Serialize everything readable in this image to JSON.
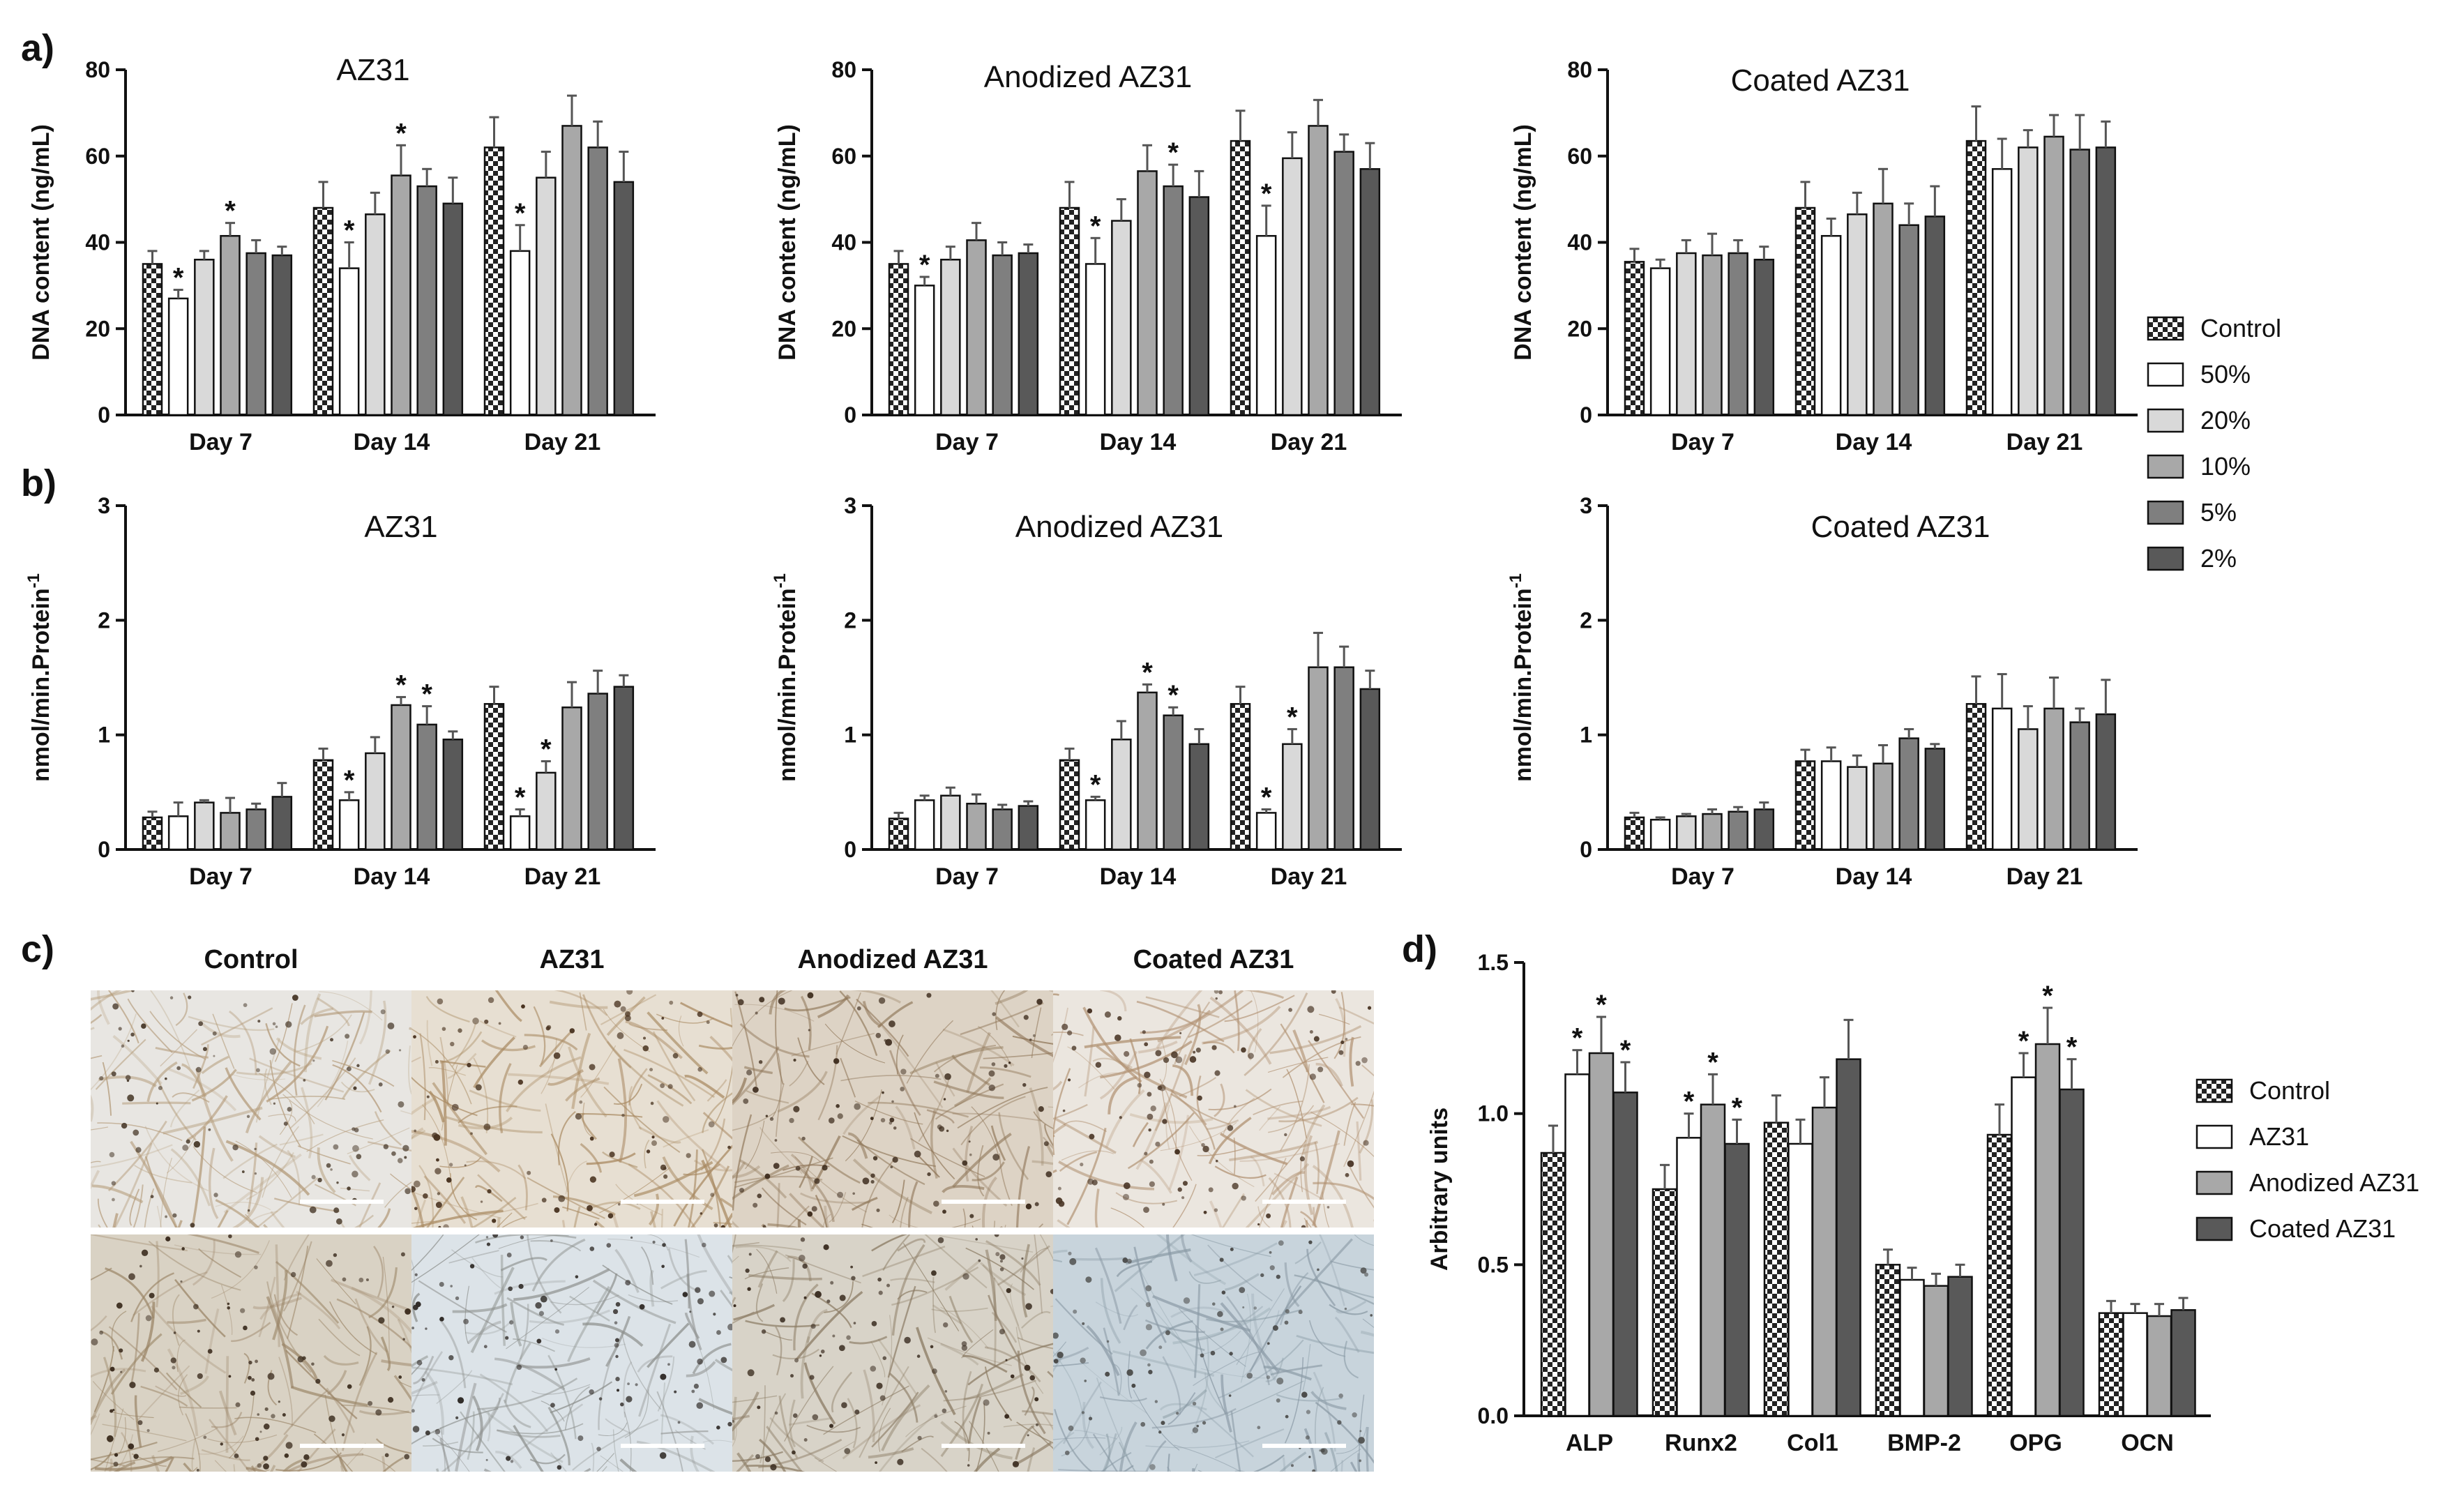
{
  "panels": {
    "a": "a)",
    "b": "b)",
    "c": "c)",
    "d": "d)"
  },
  "colors": {
    "checker_dark": "#222222",
    "checker_light": "#ffffff",
    "series_50": "#ffffff",
    "series_20": "#d9d9d9",
    "series_10": "#a8a8a8",
    "series_5": "#7f7f7f",
    "series_2": "#595959",
    "d_az31": "#ffffff",
    "d_anodized": "#a8a8a8",
    "d_coated": "#595959"
  },
  "legend_ab": [
    "Control",
    "50%",
    "20%",
    "10%",
    "5%",
    "2%"
  ],
  "legend_d": [
    "Control",
    "AZ31",
    "Anodized AZ31",
    "Coated AZ31"
  ],
  "micrographs": {
    "columns": [
      "Control",
      "AZ31",
      "Anodized AZ31",
      "Coated AZ31"
    ],
    "scale_bar_unit_shown": false
  },
  "chart_data": [
    {
      "id": "a1",
      "type": "bar",
      "title": "AZ31",
      "ylabel": "DNA content (ng/mL)",
      "xlabel": "",
      "ylim": [
        0,
        80
      ],
      "yticks": [
        0,
        20,
        40,
        60,
        80
      ],
      "categories": [
        "Day 7",
        "Day 14",
        "Day 21"
      ],
      "series": [
        {
          "name": "Control",
          "values": [
            35,
            48,
            62
          ],
          "errors": [
            3,
            6,
            7
          ],
          "sig": [
            false,
            false,
            false
          ]
        },
        {
          "name": "50%",
          "values": [
            27,
            34,
            38
          ],
          "errors": [
            2,
            6,
            6
          ],
          "sig": [
            true,
            true,
            true
          ]
        },
        {
          "name": "20%",
          "values": [
            36,
            46.5,
            55
          ],
          "errors": [
            2,
            5,
            6
          ],
          "sig": [
            false,
            false,
            false
          ]
        },
        {
          "name": "10%",
          "values": [
            41.5,
            55.5,
            67
          ],
          "errors": [
            3,
            7,
            7
          ],
          "sig": [
            true,
            true,
            false
          ]
        },
        {
          "name": "5%",
          "values": [
            37.5,
            53,
            62
          ],
          "errors": [
            3,
            4,
            6
          ],
          "sig": [
            false,
            false,
            false
          ]
        },
        {
          "name": "2%",
          "values": [
            37,
            49,
            54
          ],
          "errors": [
            2,
            6,
            7
          ],
          "sig": [
            false,
            false,
            false
          ]
        }
      ]
    },
    {
      "id": "a2",
      "type": "bar",
      "title": "Anodized AZ31",
      "ylabel": "DNA content (ng/mL)",
      "xlabel": "",
      "ylim": [
        0,
        80
      ],
      "yticks": [
        0,
        20,
        40,
        60,
        80
      ],
      "categories": [
        "Day 7",
        "Day 14",
        "Day 21"
      ],
      "series": [
        {
          "name": "Control",
          "values": [
            35,
            48,
            63.5
          ],
          "errors": [
            3,
            6,
            7
          ],
          "sig": [
            false,
            false,
            false
          ]
        },
        {
          "name": "50%",
          "values": [
            30,
            35,
            41.5
          ],
          "errors": [
            2,
            6,
            7
          ],
          "sig": [
            true,
            true,
            true
          ]
        },
        {
          "name": "20%",
          "values": [
            36,
            45,
            59.5
          ],
          "errors": [
            3,
            5,
            6
          ],
          "sig": [
            false,
            false,
            false
          ]
        },
        {
          "name": "10%",
          "values": [
            40.5,
            56.5,
            67
          ],
          "errors": [
            4,
            6,
            6
          ],
          "sig": [
            false,
            false,
            false
          ]
        },
        {
          "name": "5%",
          "values": [
            37,
            53,
            61
          ],
          "errors": [
            3,
            5,
            4
          ],
          "sig": [
            false,
            true,
            false
          ]
        },
        {
          "name": "2%",
          "values": [
            37.5,
            50.5,
            57
          ],
          "errors": [
            2,
            6,
            6
          ],
          "sig": [
            false,
            false,
            false
          ]
        }
      ]
    },
    {
      "id": "a3",
      "type": "bar",
      "title": "Coated AZ31",
      "ylabel": "DNA content (ng/mL)",
      "xlabel": "",
      "ylim": [
        0,
        80
      ],
      "yticks": [
        0,
        20,
        40,
        60,
        80
      ],
      "categories": [
        "Day 7",
        "Day 14",
        "Day 21"
      ],
      "series": [
        {
          "name": "Control",
          "values": [
            35.5,
            48,
            63.5
          ],
          "errors": [
            3,
            6,
            8
          ],
          "sig": [
            false,
            false,
            false
          ]
        },
        {
          "name": "50%",
          "values": [
            34,
            41.5,
            57
          ],
          "errors": [
            2,
            4,
            7
          ],
          "sig": [
            false,
            false,
            false
          ]
        },
        {
          "name": "20%",
          "values": [
            37.5,
            46.5,
            62
          ],
          "errors": [
            3,
            5,
            4
          ],
          "sig": [
            false,
            false,
            false
          ]
        },
        {
          "name": "10%",
          "values": [
            37,
            49,
            64.5
          ],
          "errors": [
            5,
            8,
            5
          ],
          "sig": [
            false,
            false,
            false
          ]
        },
        {
          "name": "5%",
          "values": [
            37.5,
            44,
            61.5
          ],
          "errors": [
            3,
            5,
            8
          ],
          "sig": [
            false,
            false,
            false
          ]
        },
        {
          "name": "2%",
          "values": [
            36,
            46,
            62
          ],
          "errors": [
            3,
            7,
            6
          ],
          "sig": [
            false,
            false,
            false
          ]
        }
      ]
    },
    {
      "id": "b1",
      "type": "bar",
      "title": "AZ31",
      "ylabel": "nmol/min.Protein-1",
      "xlabel": "",
      "ylim": [
        0,
        3
      ],
      "yticks": [
        0,
        1,
        2,
        3
      ],
      "categories": [
        "Day 7",
        "Day 14",
        "Day 21"
      ],
      "series": [
        {
          "name": "Control",
          "values": [
            0.28,
            0.78,
            1.27
          ],
          "errors": [
            0.05,
            0.1,
            0.15
          ],
          "sig": [
            false,
            false,
            false
          ]
        },
        {
          "name": "50%",
          "values": [
            0.29,
            0.43,
            0.29
          ],
          "errors": [
            0.12,
            0.07,
            0.06
          ],
          "sig": [
            false,
            true,
            true
          ]
        },
        {
          "name": "20%",
          "values": [
            0.41,
            0.84,
            0.67
          ],
          "errors": [
            0.02,
            0.14,
            0.1
          ],
          "sig": [
            false,
            false,
            true
          ]
        },
        {
          "name": "10%",
          "values": [
            0.32,
            1.26,
            1.24
          ],
          "errors": [
            0.13,
            0.07,
            0.22
          ],
          "sig": [
            false,
            true,
            false
          ]
        },
        {
          "name": "5%",
          "values": [
            0.35,
            1.09,
            1.36
          ],
          "errors": [
            0.05,
            0.16,
            0.2
          ],
          "sig": [
            false,
            true,
            false
          ]
        },
        {
          "name": "2%",
          "values": [
            0.46,
            0.96,
            1.42
          ],
          "errors": [
            0.12,
            0.07,
            0.1
          ],
          "sig": [
            false,
            false,
            false
          ]
        }
      ]
    },
    {
      "id": "b2",
      "type": "bar",
      "title": "Anodized AZ31",
      "ylabel": "nmol/min.Protein-1",
      "xlabel": "",
      "ylim": [
        0,
        3
      ],
      "yticks": [
        0,
        1,
        2,
        3
      ],
      "categories": [
        "Day 7",
        "Day 14",
        "Day 21"
      ],
      "series": [
        {
          "name": "Control",
          "values": [
            0.27,
            0.78,
            1.27
          ],
          "errors": [
            0.05,
            0.1,
            0.15
          ],
          "sig": [
            false,
            false,
            false
          ]
        },
        {
          "name": "50%",
          "values": [
            0.43,
            0.43,
            0.32
          ],
          "errors": [
            0.04,
            0.03,
            0.03
          ],
          "sig": [
            false,
            true,
            true
          ]
        },
        {
          "name": "20%",
          "values": [
            0.47,
            0.96,
            0.92
          ],
          "errors": [
            0.07,
            0.16,
            0.13
          ],
          "sig": [
            false,
            false,
            true
          ]
        },
        {
          "name": "10%",
          "values": [
            0.4,
            1.37,
            1.59
          ],
          "errors": [
            0.08,
            0.07,
            0.3
          ],
          "sig": [
            false,
            true,
            false
          ]
        },
        {
          "name": "5%",
          "values": [
            0.35,
            1.17,
            1.59
          ],
          "errors": [
            0.04,
            0.07,
            0.18
          ],
          "sig": [
            false,
            true,
            false
          ]
        },
        {
          "name": "2%",
          "values": [
            0.38,
            0.92,
            1.4
          ],
          "errors": [
            0.04,
            0.13,
            0.16
          ],
          "sig": [
            false,
            false,
            false
          ]
        }
      ]
    },
    {
      "id": "b3",
      "type": "bar",
      "title": "Coated AZ31",
      "ylabel": "nmol/min.Protein-1",
      "xlabel": "",
      "ylim": [
        0,
        3
      ],
      "yticks": [
        0,
        1,
        2,
        3
      ],
      "categories": [
        "Day 7",
        "Day 14",
        "Day 21"
      ],
      "series": [
        {
          "name": "Control",
          "values": [
            0.28,
            0.77,
            1.27
          ],
          "errors": [
            0.04,
            0.1,
            0.24
          ],
          "sig": [
            false,
            false,
            false
          ]
        },
        {
          "name": "50%",
          "values": [
            0.26,
            0.77,
            1.23
          ],
          "errors": [
            0.02,
            0.12,
            0.3
          ],
          "sig": [
            false,
            false,
            false
          ]
        },
        {
          "name": "20%",
          "values": [
            0.29,
            0.72,
            1.05
          ],
          "errors": [
            0.02,
            0.1,
            0.2
          ],
          "sig": [
            false,
            false,
            false
          ]
        },
        {
          "name": "10%",
          "values": [
            0.31,
            0.75,
            1.23
          ],
          "errors": [
            0.04,
            0.16,
            0.27
          ],
          "sig": [
            false,
            false,
            false
          ]
        },
        {
          "name": "5%",
          "values": [
            0.33,
            0.97,
            1.11
          ],
          "errors": [
            0.04,
            0.08,
            0.12
          ],
          "sig": [
            false,
            false,
            false
          ]
        },
        {
          "name": "2%",
          "values": [
            0.35,
            0.88,
            1.18
          ],
          "errors": [
            0.06,
            0.04,
            0.3
          ],
          "sig": [
            false,
            false,
            false
          ]
        }
      ]
    },
    {
      "id": "d",
      "type": "bar",
      "title": "",
      "ylabel": "Arbitrary units",
      "xlabel": "",
      "ylim": [
        0,
        1.5
      ],
      "yticks": [
        "0.0",
        "0.5",
        "1.0",
        "1.5"
      ],
      "categories": [
        "ALP",
        "Runx2",
        "Col1",
        "BMP-2",
        "OPG",
        "OCN"
      ],
      "series": [
        {
          "name": "Control",
          "values": [
            0.87,
            0.75,
            0.97,
            0.5,
            0.93,
            0.34
          ],
          "errors": [
            0.09,
            0.08,
            0.09,
            0.05,
            0.1,
            0.04
          ],
          "sig": [
            false,
            false,
            false,
            false,
            false,
            false
          ]
        },
        {
          "name": "AZ31",
          "values": [
            1.13,
            0.92,
            0.9,
            0.45,
            1.12,
            0.34
          ],
          "errors": [
            0.08,
            0.08,
            0.08,
            0.04,
            0.08,
            0.03
          ],
          "sig": [
            true,
            true,
            false,
            false,
            true,
            false
          ]
        },
        {
          "name": "Anodized AZ31",
          "values": [
            1.2,
            1.03,
            1.02,
            0.43,
            1.23,
            0.33
          ],
          "errors": [
            0.12,
            0.1,
            0.1,
            0.04,
            0.12,
            0.04
          ],
          "sig": [
            true,
            true,
            false,
            false,
            true,
            false
          ]
        },
        {
          "name": "Coated AZ31",
          "values": [
            1.07,
            0.9,
            1.18,
            0.46,
            1.08,
            0.35
          ],
          "errors": [
            0.1,
            0.08,
            0.13,
            0.04,
            0.1,
            0.04
          ],
          "sig": [
            true,
            true,
            false,
            false,
            true,
            false
          ]
        }
      ]
    }
  ]
}
